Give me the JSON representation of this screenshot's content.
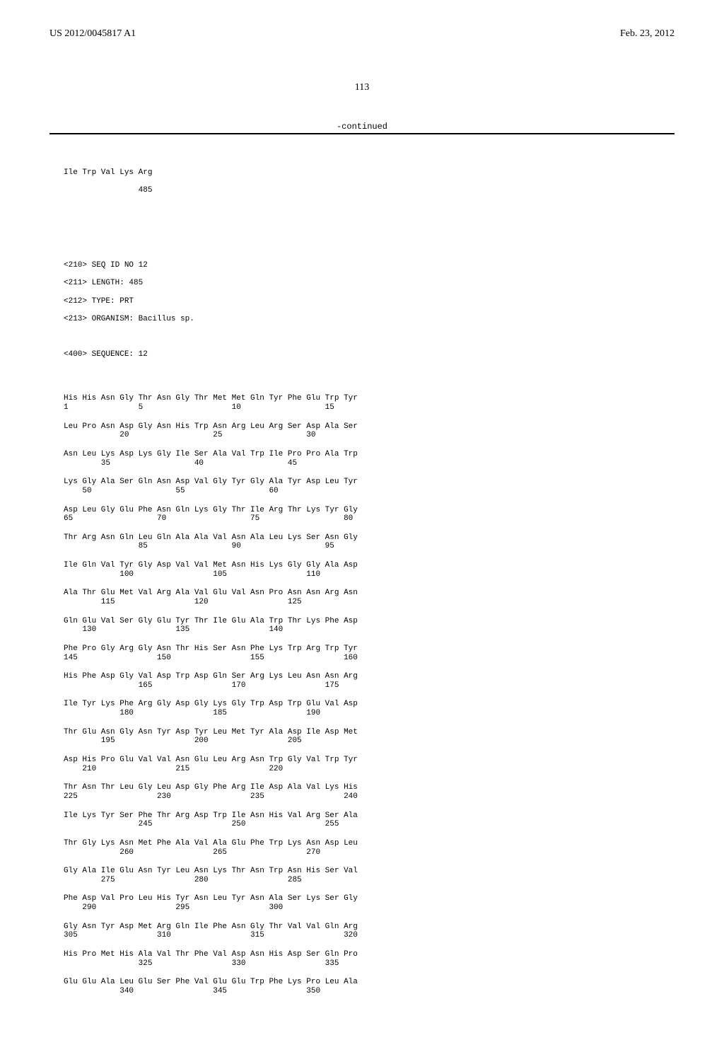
{
  "header": {
    "pub_number": "US 2012/0045817 A1",
    "date": "Feb. 23, 2012"
  },
  "page_number": "113",
  "continued_label": "-continued",
  "tail": {
    "residues": "Ile Trp Val Lys Arg",
    "num": "485"
  },
  "seq_header": {
    "line1": "<210> SEQ ID NO 12",
    "line2": "<211> LENGTH: 485",
    "line3": "<212> TYPE: PRT",
    "line4": "<213> ORGANISM: Bacillus sp.",
    "line5": "<400> SEQUENCE: 12"
  },
  "sequence_rows": [
    {
      "aa": "His His Asn Gly Thr Asn Gly Thr Met Met Gln Tyr Phe Glu Trp Tyr",
      "nm": "1               5                   10                  15"
    },
    {
      "aa": "Leu Pro Asn Asp Gly Asn His Trp Asn Arg Leu Arg Ser Asp Ala Ser",
      "nm": "            20                  25                  30"
    },
    {
      "aa": "Asn Leu Lys Asp Lys Gly Ile Ser Ala Val Trp Ile Pro Pro Ala Trp",
      "nm": "        35                  40                  45"
    },
    {
      "aa": "Lys Gly Ala Ser Gln Asn Asp Val Gly Tyr Gly Ala Tyr Asp Leu Tyr",
      "nm": "    50                  55                  60"
    },
    {
      "aa": "Asp Leu Gly Glu Phe Asn Gln Lys Gly Thr Ile Arg Thr Lys Tyr Gly",
      "nm": "65                  70                  75                  80"
    },
    {
      "aa": "Thr Arg Asn Gln Leu Gln Ala Ala Val Asn Ala Leu Lys Ser Asn Gly",
      "nm": "                85                  90                  95"
    },
    {
      "aa": "Ile Gln Val Tyr Gly Asp Val Val Met Asn His Lys Gly Gly Ala Asp",
      "nm": "            100                 105                 110"
    },
    {
      "aa": "Ala Thr Glu Met Val Arg Ala Val Glu Val Asn Pro Asn Asn Arg Asn",
      "nm": "        115                 120                 125"
    },
    {
      "aa": "Gln Glu Val Ser Gly Glu Tyr Thr Ile Glu Ala Trp Thr Lys Phe Asp",
      "nm": "    130                 135                 140"
    },
    {
      "aa": "Phe Pro Gly Arg Gly Asn Thr His Ser Asn Phe Lys Trp Arg Trp Tyr",
      "nm": "145                 150                 155                 160"
    },
    {
      "aa": "His Phe Asp Gly Val Asp Trp Asp Gln Ser Arg Lys Leu Asn Asn Arg",
      "nm": "                165                 170                 175"
    },
    {
      "aa": "Ile Tyr Lys Phe Arg Gly Asp Gly Lys Gly Trp Asp Trp Glu Val Asp",
      "nm": "            180                 185                 190"
    },
    {
      "aa": "Thr Glu Asn Gly Asn Tyr Asp Tyr Leu Met Tyr Ala Asp Ile Asp Met",
      "nm": "        195                 200                 205"
    },
    {
      "aa": "Asp His Pro Glu Val Val Asn Glu Leu Arg Asn Trp Gly Val Trp Tyr",
      "nm": "    210                 215                 220"
    },
    {
      "aa": "Thr Asn Thr Leu Gly Leu Asp Gly Phe Arg Ile Asp Ala Val Lys His",
      "nm": "225                 230                 235                 240"
    },
    {
      "aa": "Ile Lys Tyr Ser Phe Thr Arg Asp Trp Ile Asn His Val Arg Ser Ala",
      "nm": "                245                 250                 255"
    },
    {
      "aa": "Thr Gly Lys Asn Met Phe Ala Val Ala Glu Phe Trp Lys Asn Asp Leu",
      "nm": "            260                 265                 270"
    },
    {
      "aa": "Gly Ala Ile Glu Asn Tyr Leu Asn Lys Thr Asn Trp Asn His Ser Val",
      "nm": "        275                 280                 285"
    },
    {
      "aa": "Phe Asp Val Pro Leu His Tyr Asn Leu Tyr Asn Ala Ser Lys Ser Gly",
      "nm": "    290                 295                 300"
    },
    {
      "aa": "Gly Asn Tyr Asp Met Arg Gln Ile Phe Asn Gly Thr Val Val Gln Arg",
      "nm": "305                 310                 315                 320"
    },
    {
      "aa": "His Pro Met His Ala Val Thr Phe Val Asp Asn His Asp Ser Gln Pro",
      "nm": "                325                 330                 335"
    },
    {
      "aa": "Glu Glu Ala Leu Glu Ser Phe Val Glu Glu Trp Phe Lys Pro Leu Ala",
      "nm": "            340                 345                 350"
    }
  ]
}
